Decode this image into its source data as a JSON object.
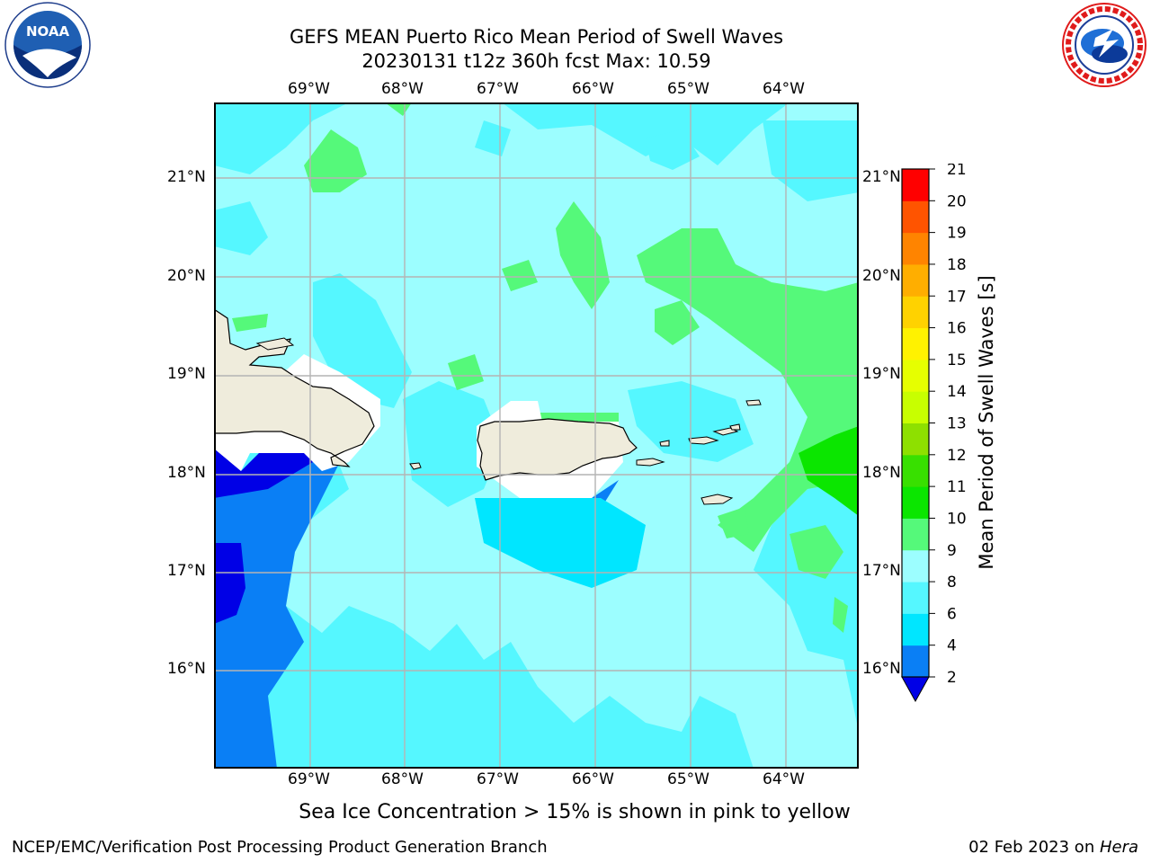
{
  "header": {
    "title_line1": "GEFS MEAN Puerto Rico Mean Period of Swell Waves",
    "title_line2": "20230131 t12z 360h fcst   Max: 10.59"
  },
  "logos": {
    "left": {
      "text": "NOAA",
      "ring_text": "NATIONAL OCEANIC AND ATMOSPHERIC ADMINISTRATION · U.S. DEPARTMENT OF COMMERCE"
    },
    "right": {
      "ring_text": "NATIONAL WEATHER SERVICE"
    }
  },
  "map": {
    "lon_labels": [
      "69°W",
      "68°W",
      "67°W",
      "66°W",
      "65°W",
      "64°W"
    ],
    "lat_labels": [
      "21°N",
      "20°N",
      "19°N",
      "18°N",
      "17°N",
      "16°N"
    ],
    "land_color": "#efecdc",
    "ocean_base_color": "#55f7ff"
  },
  "colorbar": {
    "label": "Mean Period of Swell Waves [s]",
    "ticks": [
      "2",
      "4",
      "6",
      "8",
      "9",
      "10",
      "11",
      "12",
      "13",
      "14",
      "15",
      "16",
      "17",
      "18",
      "19",
      "20",
      "21"
    ],
    "colors": [
      "#0a7ff5",
      "#00e6ff",
      "#55f7ff",
      "#9cfeff",
      "#55f97a",
      "#0be600",
      "#38e000",
      "#8ee000",
      "#c8ff00",
      "#e6ff00",
      "#fff200",
      "#ffd200",
      "#ffae00",
      "#ff8400",
      "#ff5400",
      "#ff2200",
      "#ff0000"
    ],
    "extend_color": "#0000e6"
  },
  "note": "Sea Ice Concentration > 15% is shown in pink to yellow",
  "footer": {
    "left": "NCEP/EMC/Verification Post Processing Product Generation Branch",
    "right_date": "02 Feb 2023 on ",
    "right_host": "Hera"
  }
}
